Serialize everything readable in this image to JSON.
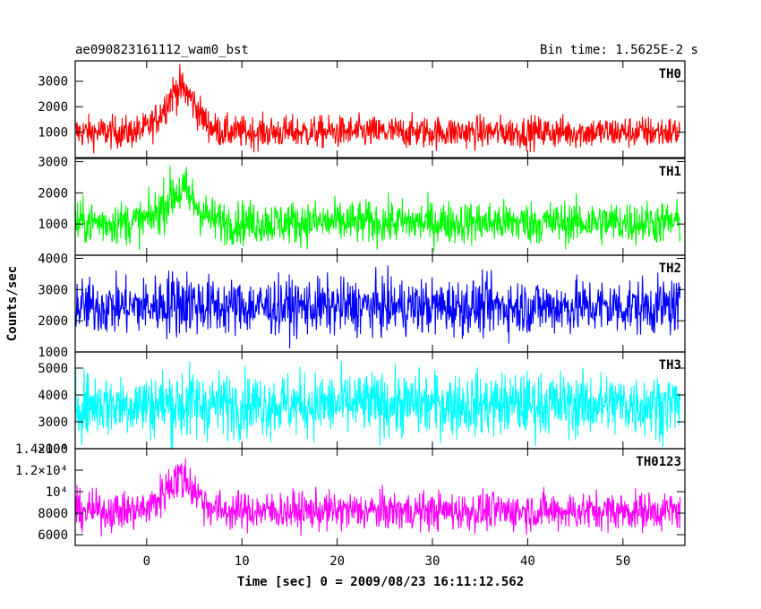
{
  "header": {
    "title": "ae090823161112_wam0_bst",
    "bin_time": "Bin time: 1.5625E-2 s"
  },
  "axes": {
    "xlabel": "Time [sec] 0 = 2009/08/23 16:11:12.562",
    "ylabel": "Counts/sec"
  },
  "chart_data": {
    "type": "line",
    "x_range": [
      -7.5,
      56.5
    ],
    "x_data_range": [
      -7.5,
      56
    ],
    "bin_time_s": 0.015625,
    "x_ticks": [
      0,
      10,
      20,
      30,
      40,
      50
    ],
    "x_tick_labels": [
      "0",
      "10",
      "20",
      "30",
      "40",
      "50"
    ],
    "panels": [
      {
        "name": "TH0",
        "color": "#ff0000",
        "ylim": [
          0,
          3800
        ],
        "y_ticks": [
          1000,
          2000,
          3000
        ],
        "y_tick_labels": [
          "1000",
          "2000",
          "3000"
        ],
        "baseline": 1000,
        "noise": 320,
        "peak": {
          "center": 3.5,
          "width": 1.6,
          "amplitude": 1700
        }
      },
      {
        "name": "TH1",
        "color": "#00ff00",
        "ylim": [
          0,
          3100
        ],
        "y_ticks": [
          1000,
          2000,
          3000
        ],
        "y_tick_labels": [
          "1000",
          "2000",
          "3000"
        ],
        "baseline": 1050,
        "noise": 350,
        "peak": {
          "center": 3.5,
          "width": 1.6,
          "amplitude": 1000
        }
      },
      {
        "name": "TH2",
        "color": "#0000ff",
        "ylim": [
          1000,
          4100
        ],
        "y_ticks": [
          1000,
          2000,
          3000,
          4000
        ],
        "y_tick_labels": [
          "1000",
          "2000",
          "3000",
          "4000"
        ],
        "baseline": 2450,
        "noise": 450,
        "peak": {
          "center": 3.5,
          "width": 1.6,
          "amplitude": 150
        }
      },
      {
        "name": "TH3",
        "color": "#00ffff",
        "ylim": [
          2000,
          5600
        ],
        "y_ticks": [
          2000,
          3000,
          4000,
          5000
        ],
        "y_tick_labels": [
          "2000",
          "3000",
          "4000",
          "5000"
        ],
        "baseline": 3650,
        "noise": 600,
        "peak": {
          "center": 3.5,
          "width": 1.6,
          "amplitude": 0
        }
      },
      {
        "name": "TH0123",
        "color": "#ff00ff",
        "ylim": [
          5000,
          14000
        ],
        "y_ticks": [
          6000,
          8000,
          10000,
          12000,
          14000
        ],
        "y_tick_labels": [
          "6000",
          "8000",
          "10⁴",
          "1.2×10⁴",
          "1.4×10⁴"
        ],
        "baseline": 8200,
        "noise": 900,
        "peak": {
          "center": 3.5,
          "width": 1.6,
          "amplitude": 3100
        }
      }
    ]
  }
}
